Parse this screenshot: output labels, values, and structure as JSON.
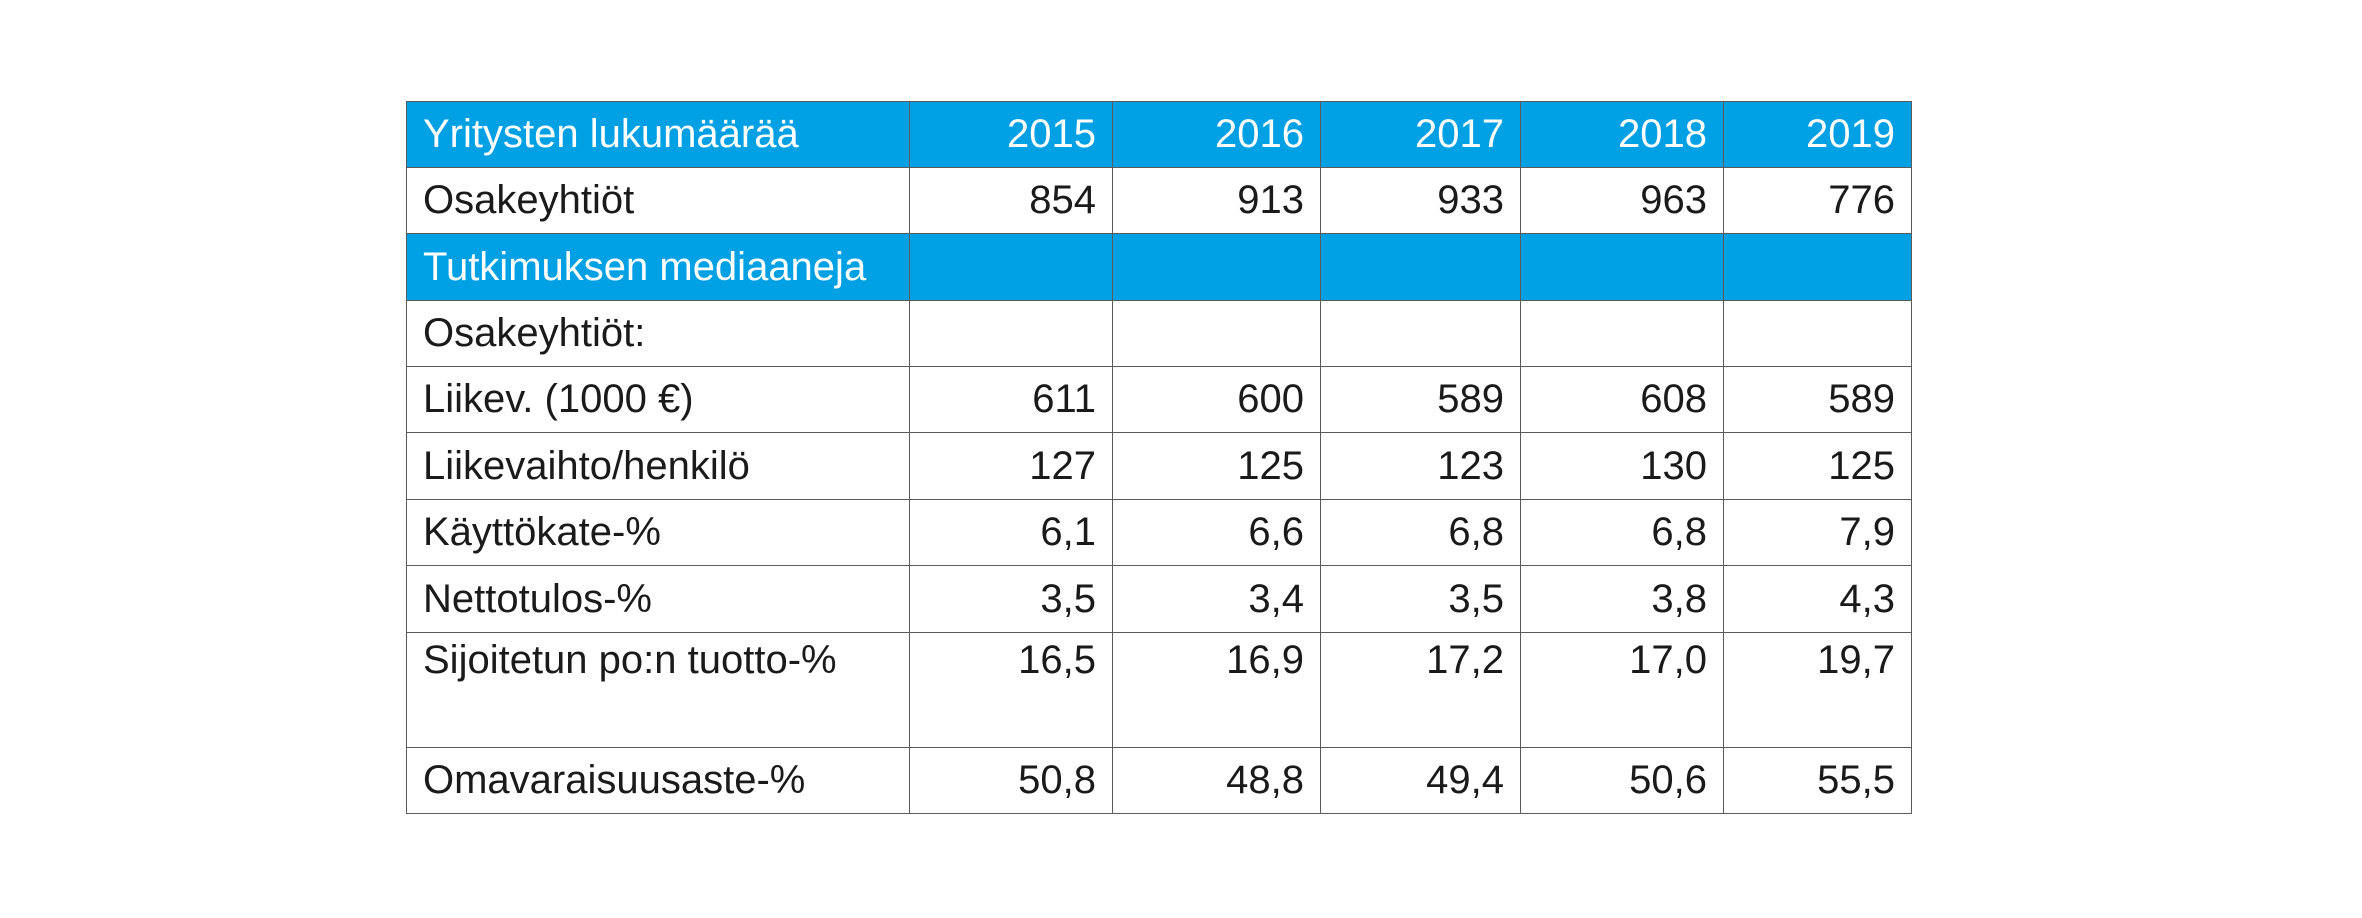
{
  "chart_data": {
    "type": "table",
    "header": [
      "Yritysten lukumäärää",
      "2015",
      "2016",
      "2017",
      "2018",
      "2019"
    ],
    "rows": [
      {
        "style": "plain",
        "cells": [
          "Osakeyhtiöt",
          "854",
          "913",
          "933",
          "963",
          "776"
        ]
      },
      {
        "style": "blue",
        "cells": [
          "Tutkimuksen mediaaneja",
          "",
          "",
          "",
          "",
          ""
        ]
      },
      {
        "style": "plain",
        "cells": [
          "Osakeyhtiöt:",
          "",
          "",
          "",
          "",
          ""
        ]
      },
      {
        "style": "plain",
        "cells": [
          "Liikev. (1000 €)",
          "611",
          "600",
          "589",
          "608",
          "589"
        ]
      },
      {
        "style": "plain",
        "cells": [
          "Liikevaihto/henkilö",
          "127",
          "125",
          "123",
          "130",
          "125"
        ]
      },
      {
        "style": "plain",
        "cells": [
          "Käyttökate-%",
          "6,1",
          "6,6",
          "6,8",
          "6,8",
          "7,9"
        ]
      },
      {
        "style": "plain",
        "cells": [
          "Nettotulos-%",
          "3,5",
          "3,4",
          "3,5",
          "3,8",
          "4,3"
        ]
      },
      {
        "style": "tall",
        "cells": [
          "Sijoitetun po:n tuotto-%",
          "16,5",
          "16,9",
          "17,2",
          "17,0",
          "19,7"
        ]
      },
      {
        "style": "plain",
        "cells": [
          "Omavaraisuusaste-%",
          "50,8",
          "48,8",
          "49,4",
          "50,6",
          "55,5"
        ]
      }
    ]
  },
  "colors": {
    "header_fill": "#00a1e4",
    "header_text": "#ffffff",
    "body_text": "#1a1a1a",
    "border": "#5a5a5a"
  }
}
